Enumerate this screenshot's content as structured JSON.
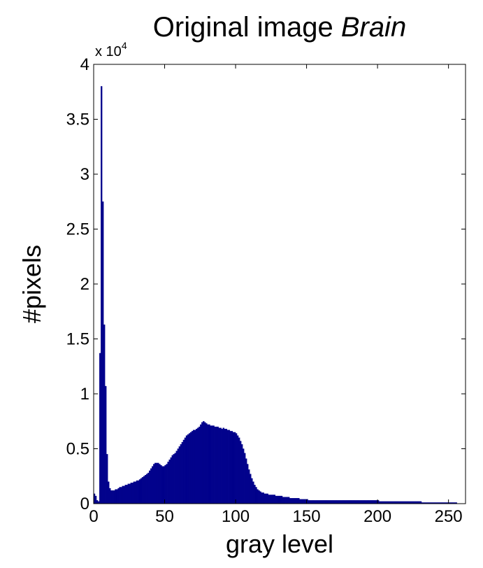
{
  "chart_data": {
    "type": "histogram",
    "title": "Original image",
    "title_italic": "Brain",
    "xlabel": "gray level",
    "ylabel": "#pixels",
    "y_multiplier": {
      "base": "x 10",
      "exponent": "4"
    },
    "color": "#00008b",
    "xlim": [
      0,
      262
    ],
    "ylim": [
      0,
      4
    ],
    "xticks": [
      0,
      50,
      100,
      150,
      200,
      250
    ],
    "yticks": [
      0,
      0.5,
      1,
      1.5,
      2,
      2.5,
      3,
      3.5,
      4
    ],
    "grid": false,
    "bins": [
      0,
      1,
      2,
      3,
      4,
      5,
      6,
      7,
      8,
      9,
      10,
      11,
      12,
      13,
      14,
      15,
      16,
      17,
      18,
      19,
      20,
      21,
      22,
      23,
      24,
      25,
      26,
      27,
      28,
      29,
      30,
      31,
      32,
      33,
      34,
      35,
      36,
      37,
      38,
      39,
      40,
      41,
      42,
      43,
      44,
      45,
      46,
      47,
      48,
      49,
      50,
      51,
      52,
      53,
      54,
      55,
      56,
      57,
      58,
      59,
      60,
      61,
      62,
      63,
      64,
      65,
      66,
      67,
      68,
      69,
      70,
      71,
      72,
      73,
      74,
      75,
      76,
      77,
      78,
      79,
      80,
      81,
      82,
      83,
      84,
      85,
      86,
      87,
      88,
      89,
      90,
      91,
      92,
      93,
      94,
      95,
      96,
      97,
      98,
      99,
      100,
      101,
      102,
      103,
      104,
      105,
      106,
      107,
      108,
      109,
      110,
      111,
      112,
      113,
      114,
      115,
      116,
      117,
      118,
      119,
      120,
      121,
      122,
      123,
      124,
      125,
      126,
      127,
      128,
      129,
      130,
      131,
      132,
      133,
      134,
      135,
      136,
      137,
      138,
      139,
      140,
      141,
      142,
      143,
      144,
      145,
      146,
      147,
      148,
      149,
      150,
      151,
      152,
      153,
      154,
      155,
      156,
      157,
      158,
      159,
      160,
      161,
      162,
      163,
      164,
      165,
      166,
      167,
      168,
      169,
      170,
      171,
      172,
      173,
      174,
      175,
      176,
      177,
      178,
      179,
      180,
      181,
      182,
      183,
      184,
      185,
      186,
      187,
      188,
      189,
      190,
      191,
      192,
      193,
      194,
      195,
      196,
      197,
      198,
      199,
      200,
      201,
      202,
      203,
      204,
      205,
      206,
      207,
      208,
      209,
      210,
      211,
      212,
      213,
      214,
      215,
      216,
      217,
      218,
      219,
      220,
      221,
      222,
      223,
      224,
      225,
      226,
      227,
      228,
      229,
      230,
      231,
      232,
      233,
      234,
      235,
      236,
      237,
      238,
      239,
      240,
      241,
      242,
      243,
      244,
      245,
      246,
      247,
      248,
      249,
      250,
      251,
      252,
      253,
      254,
      255,
      256
    ],
    "values": [
      0.09,
      0.07,
      0.03,
      0.02,
      1.37,
      3.8,
      2.75,
      1.63,
      1.07,
      0.45,
      0.2,
      0.14,
      0.12,
      0.12,
      0.12,
      0.13,
      0.13,
      0.14,
      0.15,
      0.15,
      0.16,
      0.16,
      0.17,
      0.17,
      0.18,
      0.18,
      0.19,
      0.19,
      0.2,
      0.2,
      0.21,
      0.21,
      0.22,
      0.23,
      0.24,
      0.25,
      0.26,
      0.27,
      0.28,
      0.3,
      0.32,
      0.34,
      0.36,
      0.37,
      0.37,
      0.37,
      0.36,
      0.35,
      0.34,
      0.34,
      0.35,
      0.36,
      0.38,
      0.4,
      0.42,
      0.44,
      0.45,
      0.46,
      0.48,
      0.5,
      0.52,
      0.54,
      0.56,
      0.58,
      0.6,
      0.62,
      0.63,
      0.64,
      0.65,
      0.66,
      0.67,
      0.67,
      0.68,
      0.69,
      0.7,
      0.72,
      0.74,
      0.75,
      0.74,
      0.73,
      0.72,
      0.72,
      0.71,
      0.71,
      0.71,
      0.7,
      0.7,
      0.7,
      0.69,
      0.69,
      0.68,
      0.69,
      0.68,
      0.68,
      0.67,
      0.67,
      0.66,
      0.66,
      0.65,
      0.65,
      0.64,
      0.62,
      0.6,
      0.57,
      0.54,
      0.5,
      0.46,
      0.41,
      0.36,
      0.31,
      0.27,
      0.23,
      0.2,
      0.17,
      0.15,
      0.13,
      0.12,
      0.11,
      0.1,
      0.1,
      0.09,
      0.09,
      0.09,
      0.08,
      0.08,
      0.08,
      0.08,
      0.08,
      0.07,
      0.07,
      0.07,
      0.07,
      0.07,
      0.06,
      0.06,
      0.06,
      0.06,
      0.06,
      0.05,
      0.05,
      0.05,
      0.05,
      0.05,
      0.05,
      0.05,
      0.04,
      0.04,
      0.04,
      0.04,
      0.04,
      0.04,
      0.03,
      0.03,
      0.03,
      0.03,
      0.03,
      0.03,
      0.03,
      0.03,
      0.03,
      0.03,
      0.03,
      0.03,
      0.03,
      0.03,
      0.03,
      0.03,
      0.03,
      0.03,
      0.03,
      0.03,
      0.03,
      0.03,
      0.03,
      0.03,
      0.03,
      0.03,
      0.03,
      0.03,
      0.03,
      0.03,
      0.03,
      0.03,
      0.03,
      0.03,
      0.03,
      0.03,
      0.03,
      0.03,
      0.03,
      0.03,
      0.03,
      0.03,
      0.03,
      0.03,
      0.03,
      0.03,
      0.03,
      0.03,
      0.03,
      0.03,
      0.02,
      0.02,
      0.02,
      0.02,
      0.02,
      0.02,
      0.02,
      0.02,
      0.02,
      0.02,
      0.02,
      0.02,
      0.02,
      0.02,
      0.02,
      0.02,
      0.02,
      0.02,
      0.02,
      0.02,
      0.02,
      0.02,
      0.02,
      0.02,
      0.02,
      0.02,
      0.02,
      0.02,
      0.02,
      0.02,
      0.01,
      0.01,
      0.01,
      0.01,
      0.01,
      0.01,
      0.01,
      0.01,
      0.01,
      0.01,
      0.01,
      0.01,
      0.01,
      0.01,
      0.01,
      0.01,
      0.01,
      0.01,
      0.01,
      0.01,
      0.01,
      0.01,
      0.01,
      0.01,
      0.01
    ]
  }
}
